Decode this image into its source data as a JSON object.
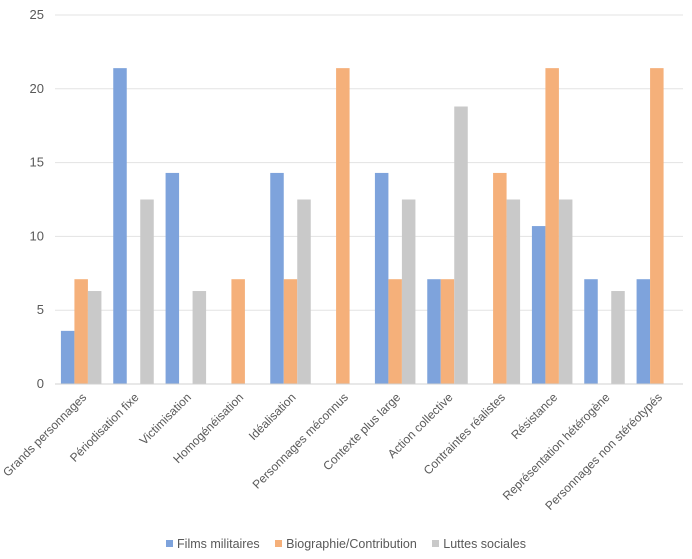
{
  "chart_data": {
    "type": "bar",
    "categories": [
      "Grands personnages",
      "Périodisation fixe",
      "Victimisation",
      "Homogénéisation",
      "Idéalisation",
      "Personnages méconnus",
      "Contexte plus large",
      "Action collective",
      "Contraintes réalistes",
      "Résistance",
      "Représentation hétérogène",
      "Personnages non stéréotypés"
    ],
    "series": [
      {
        "name": "Films militaires",
        "color": "#7ea3dc",
        "values": [
          3.6,
          21.4,
          14.3,
          0,
          14.3,
          0,
          14.3,
          7.1,
          0,
          10.7,
          7.1,
          7.1
        ]
      },
      {
        "name": "Biographie/Contribution",
        "color": "#f5b07a",
        "values": [
          7.1,
          0,
          0,
          7.1,
          7.1,
          21.4,
          7.1,
          7.1,
          14.3,
          21.4,
          0,
          21.4
        ]
      },
      {
        "name": "Luttes sociales",
        "color": "#c9c9c9",
        "values": [
          6.3,
          12.5,
          6.3,
          0,
          12.5,
          0,
          12.5,
          18.8,
          12.5,
          12.5,
          6.3,
          0
        ]
      }
    ],
    "yticks": [
      "0",
      "5",
      "10",
      "15",
      "20",
      "25"
    ],
    "ylim": [
      0,
      25
    ],
    "grid": true,
    "legend_position": "bottom"
  }
}
